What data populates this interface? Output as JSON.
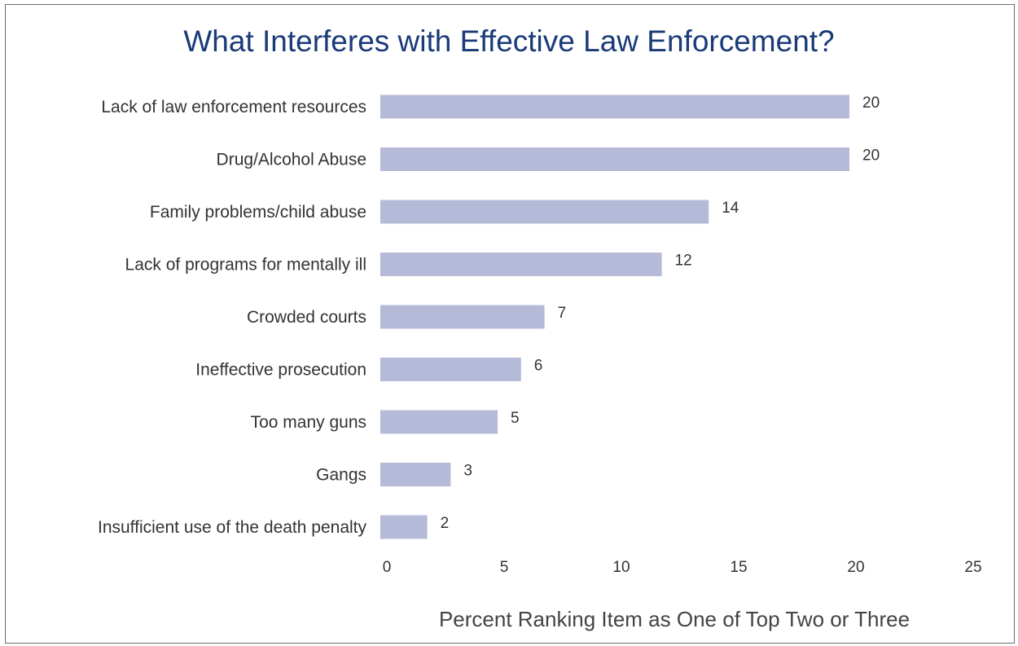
{
  "chart_data": {
    "type": "bar",
    "orientation": "horizontal",
    "title": "What Interferes with Effective Law Enforcement?",
    "xlabel": "Percent Ranking Item as One of Top Two or Three",
    "ylabel": "",
    "categories": [
      "Lack of law enforcement resources",
      "Drug/Alcohol Abuse",
      "Family problems/child abuse",
      "Lack of programs for mentally ill",
      "Crowded courts",
      "Ineffective prosecution",
      "Too many guns",
      "Gangs",
      "Insufficient use of the death penalty"
    ],
    "values": [
      20,
      20,
      14,
      12,
      7,
      6,
      5,
      3,
      2
    ],
    "data_labels": [
      "20",
      "20",
      "14",
      "12",
      "7",
      "6",
      "5",
      "3",
      "2"
    ],
    "xlim": [
      0,
      25
    ],
    "xticks": [
      "0",
      "5",
      "10",
      "15",
      "20",
      "25"
    ],
    "grid": false,
    "legend": "none",
    "bar_color": "#b5bad8",
    "title_color": "#1a3a78"
  }
}
